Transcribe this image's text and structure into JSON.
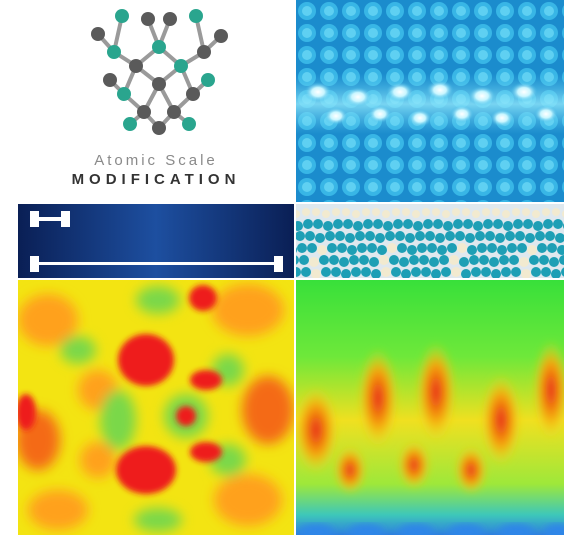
{
  "logo": {
    "line1": "Atomic Scale",
    "line2": "MODIFICATION",
    "colors": {
      "teal": "#2aa58e",
      "gray": "#5a5a5a",
      "bond": "#9a9a9a"
    }
  },
  "panels": {
    "stm": {
      "icon": "stm-atomic-lattice-image",
      "colors": {
        "base": "#1e8fcf",
        "highlight": "#e8fbff"
      }
    },
    "scale_bar": {
      "icon": "scale-bar-dumbbell-icon",
      "colors": {
        "background": "#0a2a6a",
        "bar": "#ffffff"
      }
    },
    "surface_3d": {
      "icon": "3d-atomic-surface-render",
      "colors": {
        "atom_teal": "#1e9fb5",
        "atom_cream": "#f2ead0"
      }
    },
    "heatmap": {
      "icon": "charge-density-heatmap",
      "colors": {
        "red": "#ee1b1b",
        "yellow": "#f5e50f",
        "green": "#7ad84a"
      }
    },
    "wave": {
      "icon": "wave-intensity-map",
      "colors": {
        "green": "#33e03a",
        "orange": "#f5a40c",
        "red": "#e61e18",
        "blue": "#2e86e8"
      }
    }
  }
}
